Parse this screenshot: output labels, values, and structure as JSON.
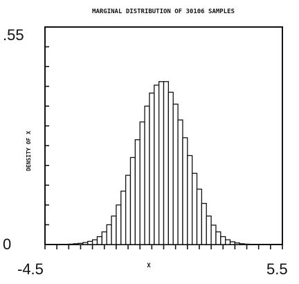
{
  "chart_data": {
    "type": "bar",
    "title": "MARGINAL DISTRIBUTION OF  30106 SAMPLES",
    "xlabel": "X",
    "ylabel": "DENSITY OF X",
    "xlim": [
      -4.5,
      5.5
    ],
    "ylim": [
      0,
      0.55
    ],
    "x_tick_labels": [
      "-4.5",
      "5.5"
    ],
    "y_tick_labels": [
      ".55",
      "0"
    ],
    "grid": false,
    "bin_width": 0.2,
    "bin_left_edges": [
      -4.5,
      -4.3,
      -4.1,
      -3.9,
      -3.7,
      -3.5,
      -3.3,
      -3.1,
      -2.9,
      -2.7,
      -2.5,
      -2.3,
      -2.1,
      -1.9,
      -1.7,
      -1.5,
      -1.3,
      -1.1,
      -0.9,
      -0.7,
      -0.5,
      -0.3,
      -0.1,
      0.1,
      0.3,
      0.5,
      0.7,
      0.9,
      1.1,
      1.3,
      1.5,
      1.7,
      1.9,
      2.1,
      2.3,
      2.5,
      2.7,
      2.9,
      3.1,
      3.3,
      3.5,
      3.7,
      3.9,
      4.1,
      4.3,
      4.5,
      4.7,
      4.9,
      5.1,
      5.3
    ],
    "values": [
      0.0,
      0.0,
      0.0,
      0.0,
      0.0,
      0.001,
      0.002,
      0.003,
      0.005,
      0.008,
      0.012,
      0.02,
      0.032,
      0.05,
      0.072,
      0.1,
      0.135,
      0.175,
      0.22,
      0.265,
      0.31,
      0.35,
      0.383,
      0.403,
      0.412,
      0.412,
      0.385,
      0.355,
      0.315,
      0.27,
      0.225,
      0.18,
      0.14,
      0.104,
      0.072,
      0.049,
      0.032,
      0.02,
      0.012,
      0.007,
      0.004,
      0.002,
      0.001,
      0.0,
      0.0,
      0.0,
      0.0,
      0.0,
      0.0,
      0.0
    ]
  }
}
